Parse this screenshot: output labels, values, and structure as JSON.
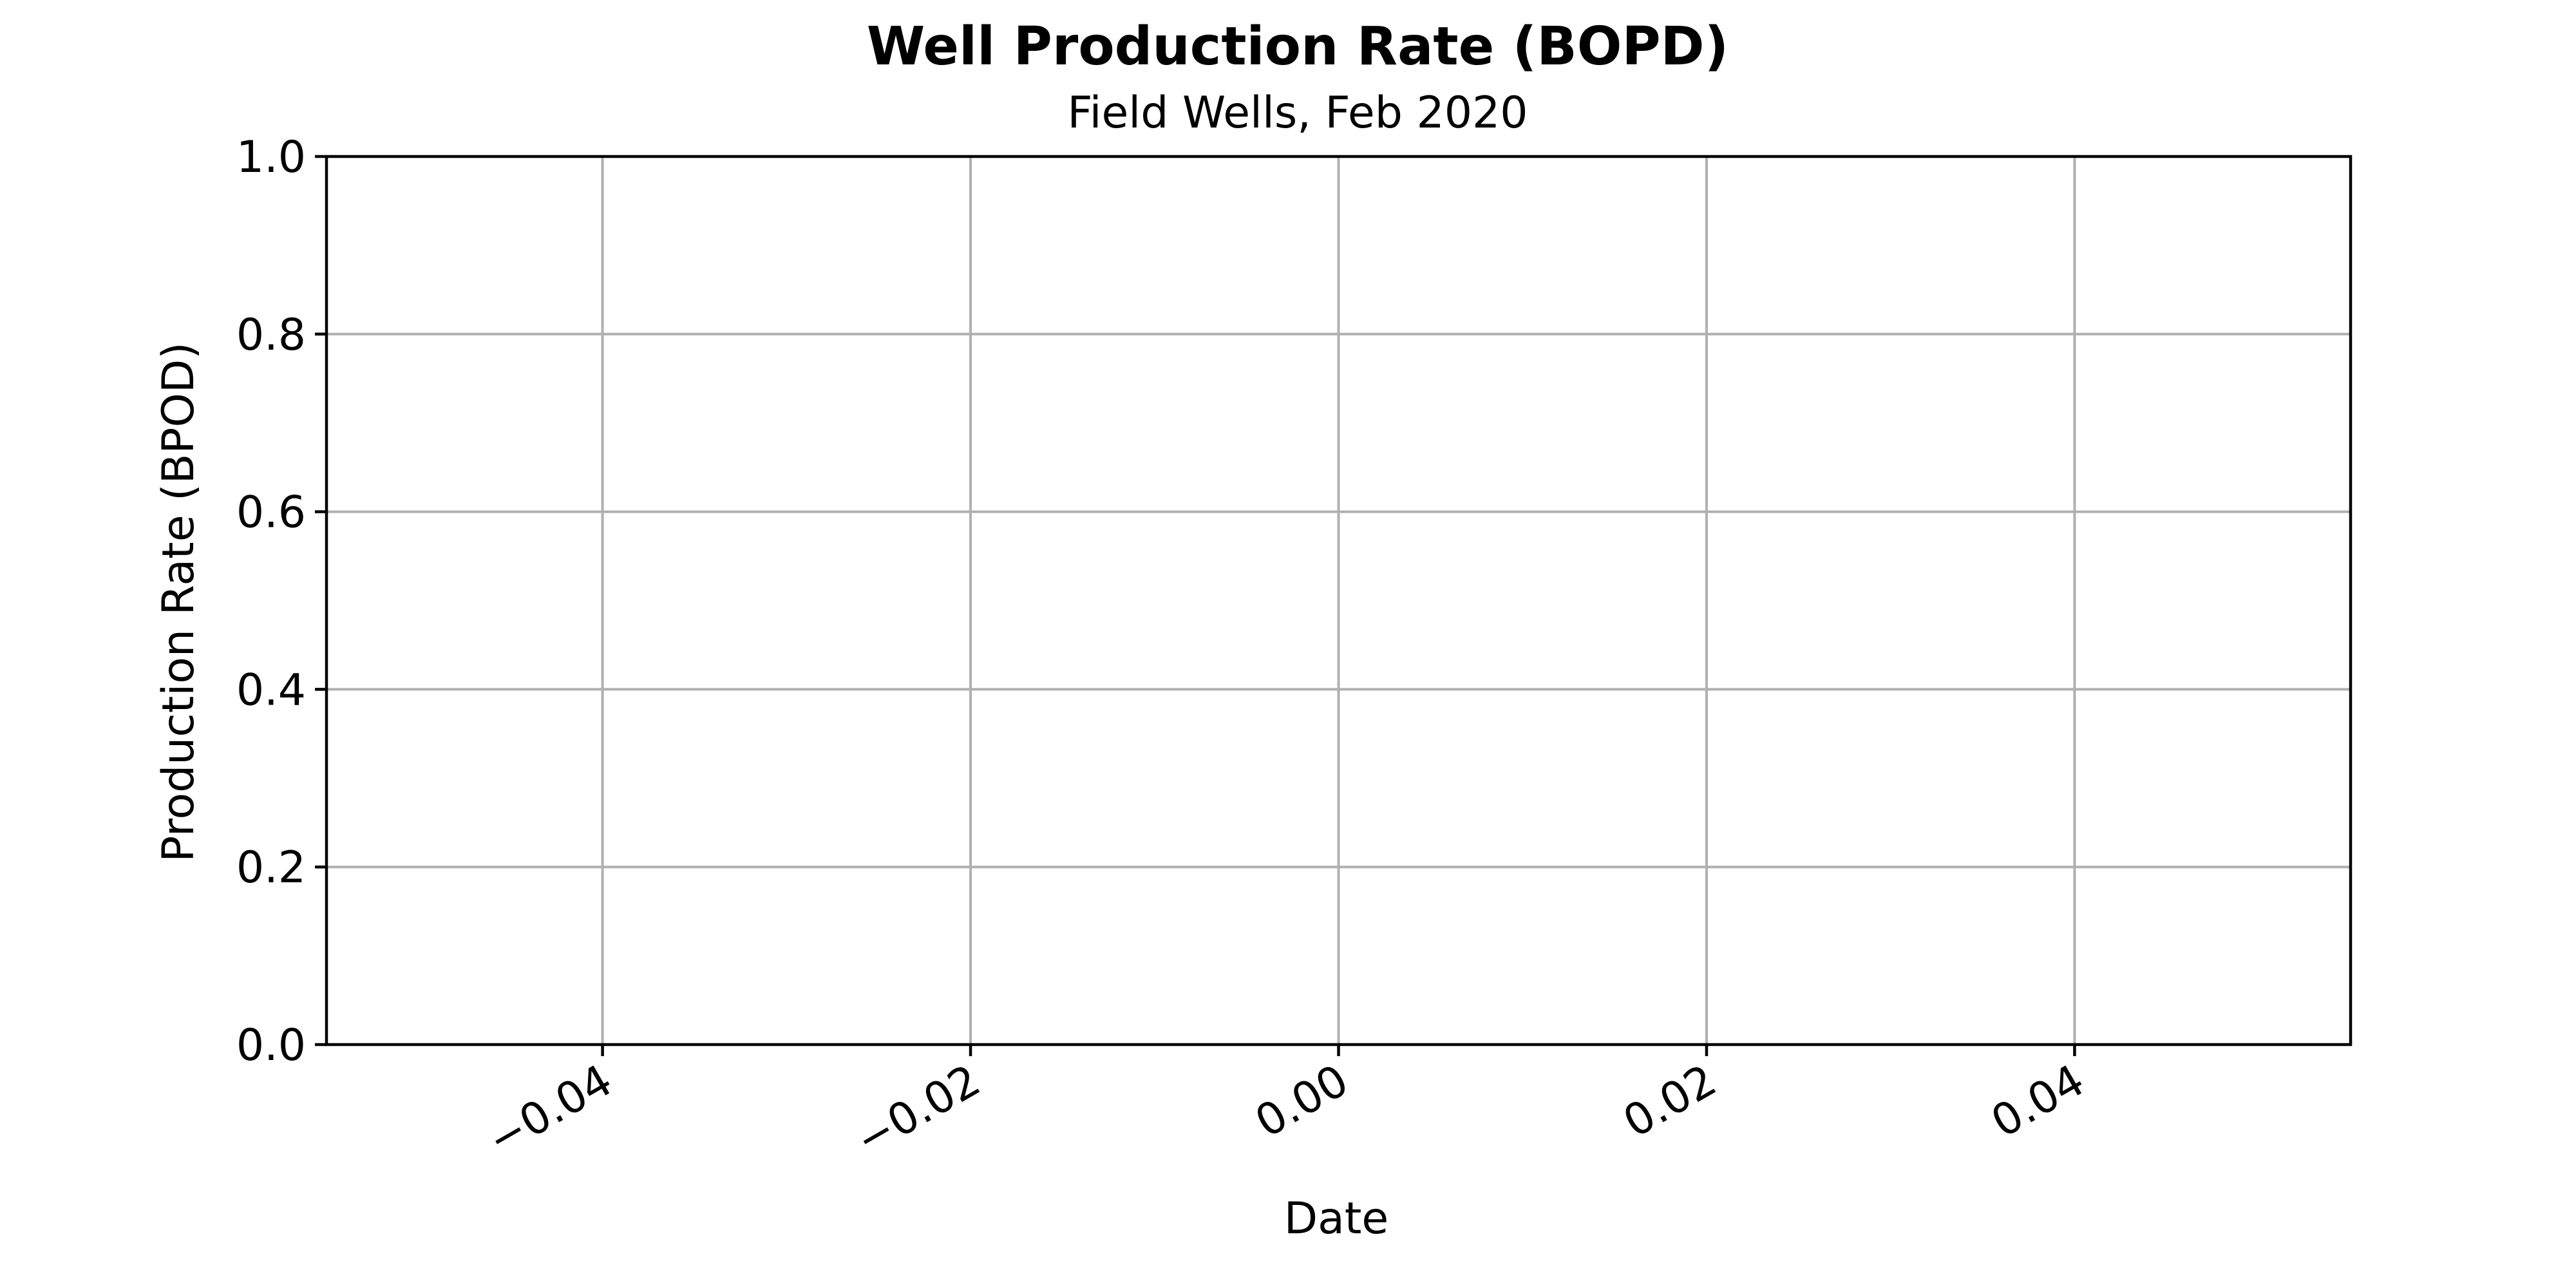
{
  "chart_data": {
    "type": "line",
    "title": "Well Production Rate (BOPD)",
    "subtitle": "Field Wells, Feb 2020",
    "xlabel": "Date",
    "ylabel": "Production Rate (BPOD)",
    "xlim": [
      -0.055,
      0.055
    ],
    "ylim": [
      0.0,
      1.0
    ],
    "x_ticks": [
      -0.04,
      -0.02,
      0.0,
      0.02,
      0.04
    ],
    "x_tick_labels": [
      "−0.04",
      "−0.02",
      "0.00",
      "0.02",
      "0.04"
    ],
    "y_ticks": [
      0.0,
      0.2,
      0.4,
      0.6,
      0.8,
      1.0
    ],
    "y_tick_labels": [
      "0.0",
      "0.2",
      "0.4",
      "0.6",
      "0.8",
      "1.0"
    ],
    "grid": true,
    "series": []
  }
}
